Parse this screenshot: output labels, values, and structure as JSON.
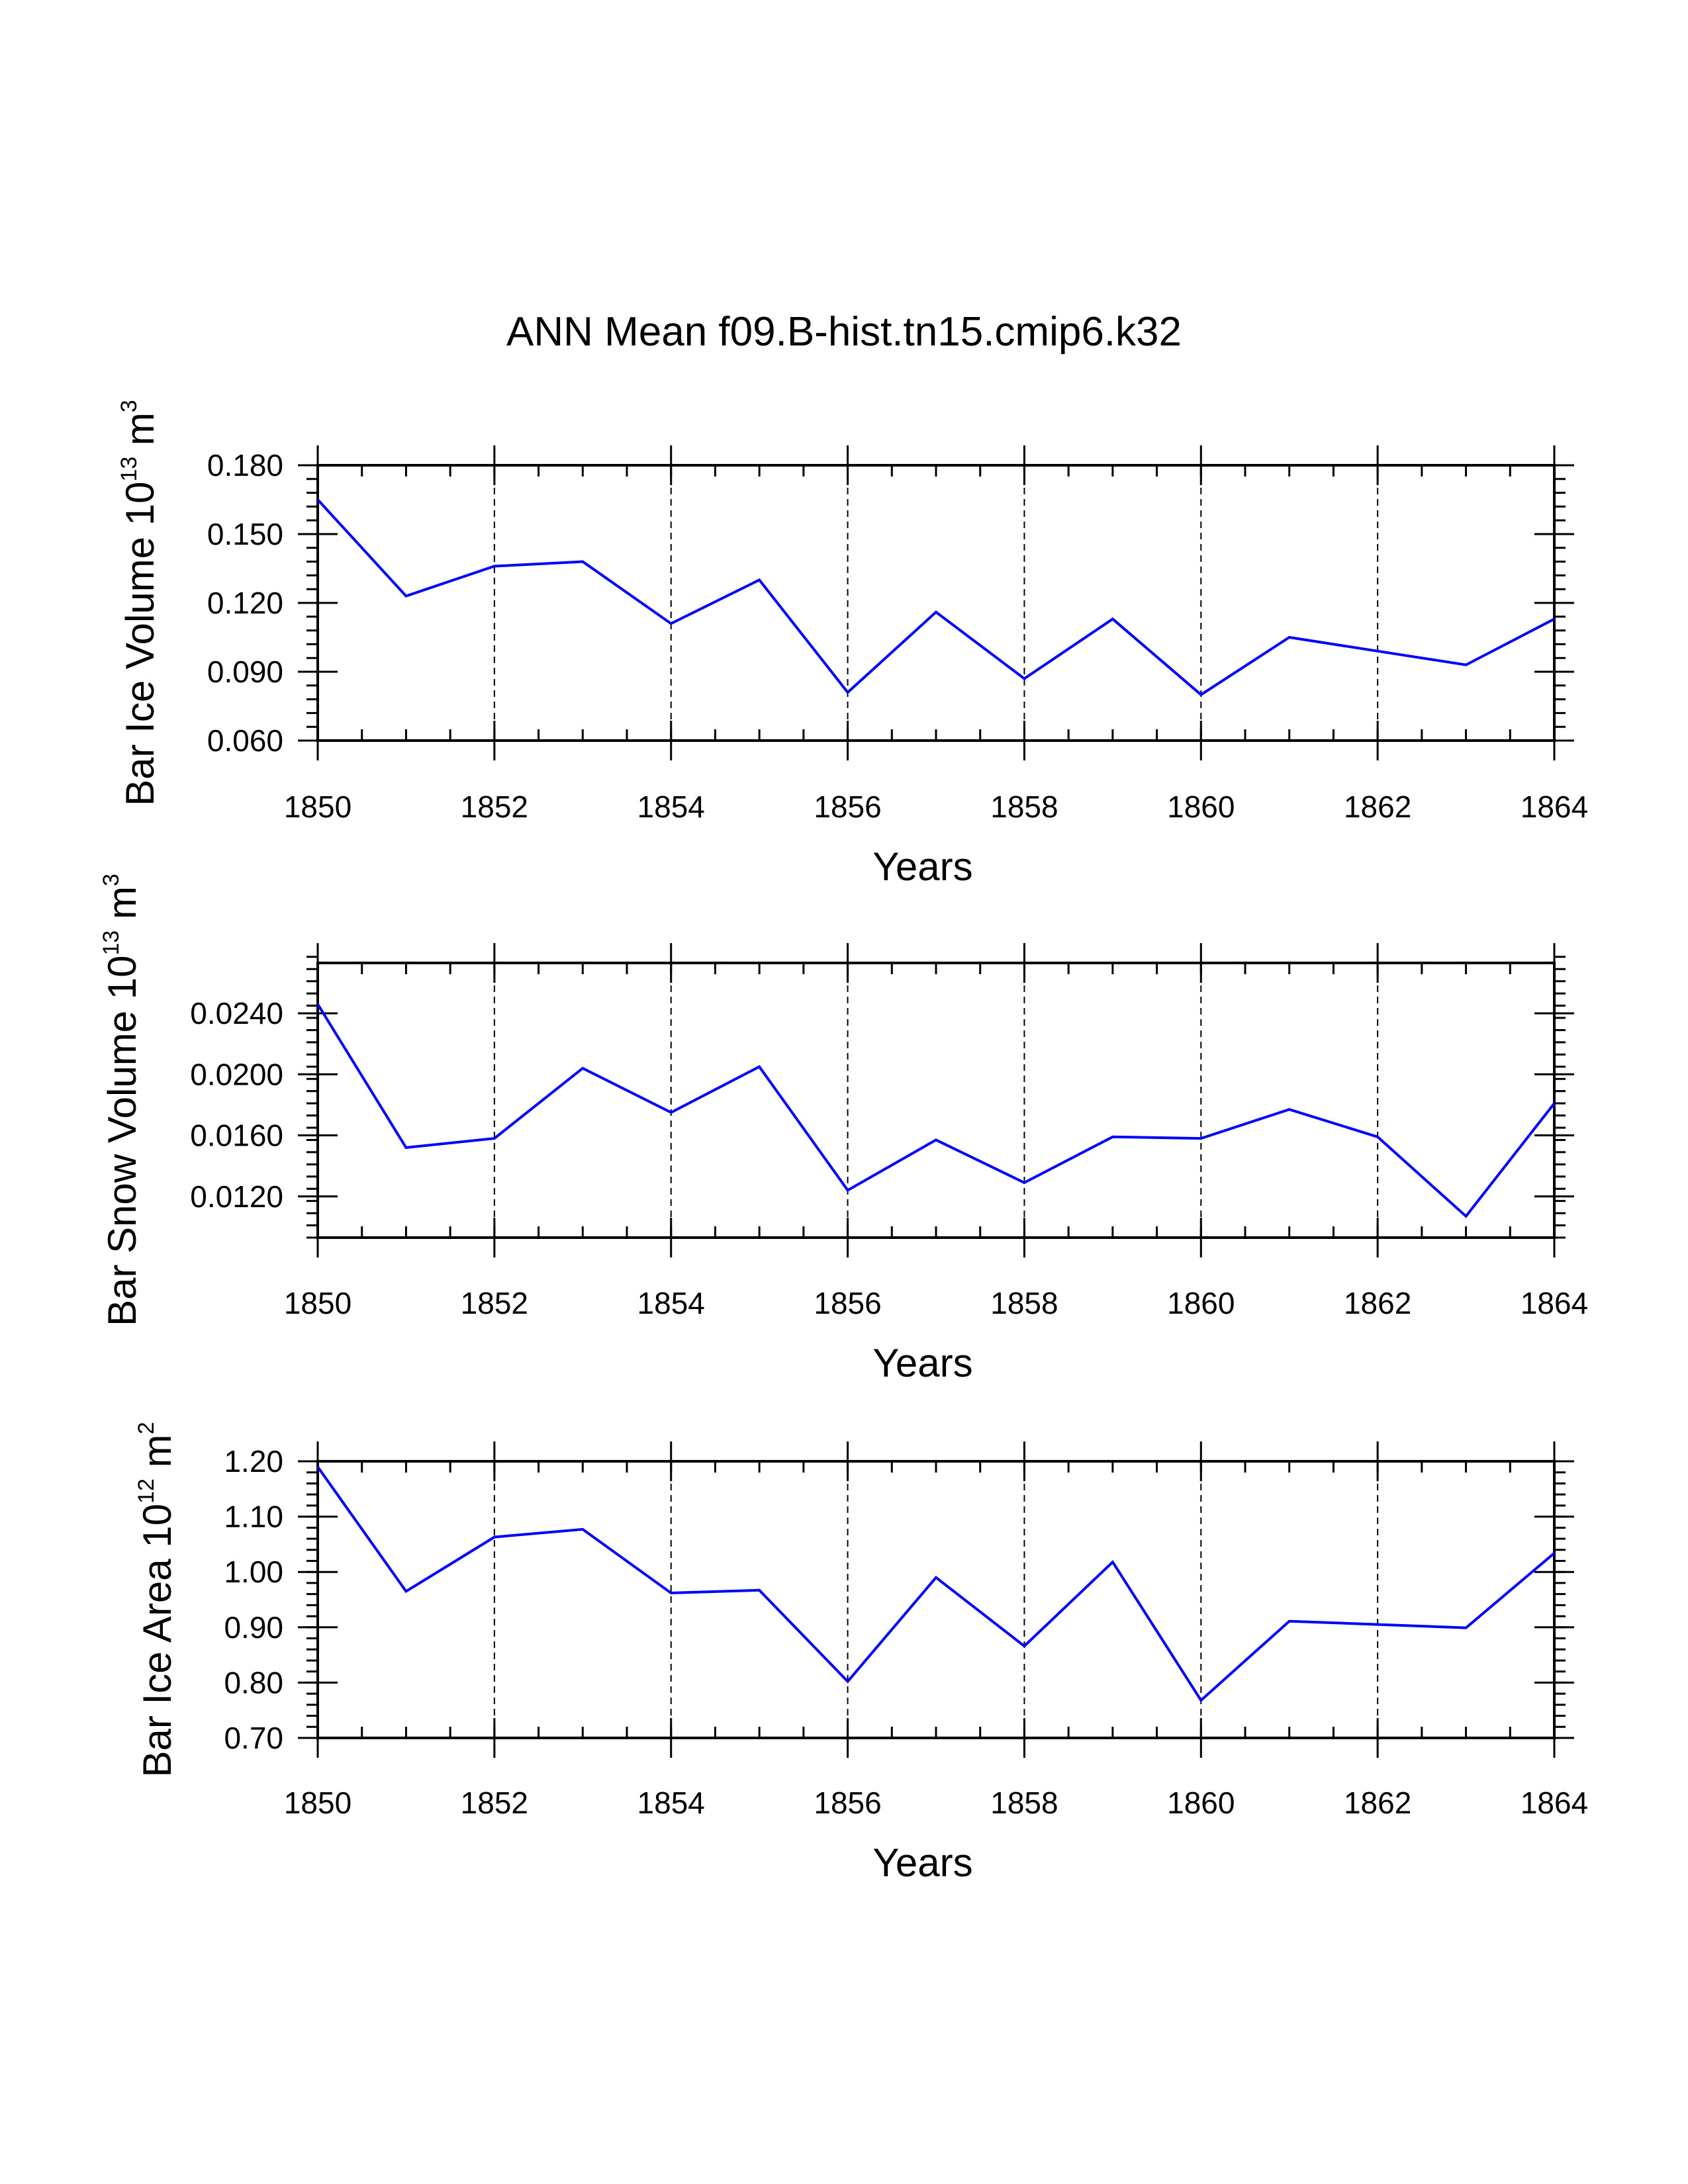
{
  "title": "ANN Mean f09.B-hist.tn15.cmip6.k32",
  "colors": {
    "series": "#0000ff",
    "axis": "#000000",
    "grid": "#000000",
    "background": "#ffffff"
  },
  "chart_data": [
    {
      "type": "line",
      "ylabel_main": "Bar Ice Volume 10",
      "ylabel_exp": "13",
      "ylabel_unit": " m",
      "ylabel_unit_exp": "3",
      "xlabel": "Years",
      "xlim": [
        1850,
        1864
      ],
      "ylim": [
        0.06,
        0.18
      ],
      "x": [
        1850,
        1851,
        1852,
        1853,
        1854,
        1855,
        1856,
        1857,
        1858,
        1859,
        1860,
        1861,
        1862,
        1863,
        1864
      ],
      "values": [
        0.165,
        0.123,
        0.136,
        0.138,
        0.111,
        0.13,
        0.081,
        0.116,
        0.087,
        0.113,
        0.08,
        0.105,
        0.099,
        0.093,
        0.113
      ],
      "xticks": [
        {
          "value": 1850,
          "label": "1850"
        },
        {
          "value": 1852,
          "label": "1852"
        },
        {
          "value": 1854,
          "label": "1854"
        },
        {
          "value": 1856,
          "label": "1856"
        },
        {
          "value": 1858,
          "label": "1858"
        },
        {
          "value": 1860,
          "label": "1860"
        },
        {
          "value": 1862,
          "label": "1862"
        },
        {
          "value": 1864,
          "label": "1864"
        }
      ],
      "yticks": [
        {
          "value": 0.06,
          "label": "0.060"
        },
        {
          "value": 0.09,
          "label": "0.090"
        },
        {
          "value": 0.12,
          "label": "0.120"
        },
        {
          "value": 0.15,
          "label": "0.150"
        },
        {
          "value": 0.18,
          "label": "0.180"
        }
      ],
      "y_minor_step": 0.006,
      "x_minor_step": 0.5,
      "vgrid": [
        1852,
        1854,
        1856,
        1858,
        1860,
        1862
      ]
    },
    {
      "type": "line",
      "ylabel_main": "Bar Snow Volume 10",
      "ylabel_exp": "13",
      "ylabel_unit": " m",
      "ylabel_unit_exp": "3",
      "xlabel": "Years",
      "xlim": [
        1850,
        1864
      ],
      "ylim": [
        0.0093,
        0.0273
      ],
      "x": [
        1850,
        1851,
        1852,
        1853,
        1854,
        1855,
        1856,
        1857,
        1858,
        1859,
        1860,
        1861,
        1862,
        1863,
        1864
      ],
      "values": [
        0.0246,
        0.0152,
        0.0158,
        0.0204,
        0.0175,
        0.0205,
        0.0124,
        0.0157,
        0.0129,
        0.0159,
        0.0158,
        0.0177,
        0.0159,
        0.0107,
        0.0181
      ],
      "xticks": [
        {
          "value": 1850,
          "label": "1850"
        },
        {
          "value": 1852,
          "label": "1852"
        },
        {
          "value": 1854,
          "label": "1854"
        },
        {
          "value": 1856,
          "label": "1856"
        },
        {
          "value": 1858,
          "label": "1858"
        },
        {
          "value": 1860,
          "label": "1860"
        },
        {
          "value": 1862,
          "label": "1862"
        },
        {
          "value": 1864,
          "label": "1864"
        }
      ],
      "yticks": [
        {
          "value": 0.012,
          "label": "0.0120"
        },
        {
          "value": 0.016,
          "label": "0.0160"
        },
        {
          "value": 0.02,
          "label": "0.0200"
        },
        {
          "value": 0.024,
          "label": "0.0240"
        }
      ],
      "y_minor_step": 0.0008,
      "x_minor_step": 0.5,
      "vgrid": [
        1852,
        1854,
        1856,
        1858,
        1860,
        1862
      ]
    },
    {
      "type": "line",
      "ylabel_main": "Bar Ice Area 10",
      "ylabel_exp": "12",
      "ylabel_unit": " m",
      "ylabel_unit_exp": "2",
      "xlabel": "Years",
      "xlim": [
        1850,
        1864
      ],
      "ylim": [
        0.7,
        1.2
      ],
      "x": [
        1850,
        1851,
        1852,
        1853,
        1854,
        1855,
        1856,
        1857,
        1858,
        1859,
        1860,
        1861,
        1862,
        1863,
        1864
      ],
      "values": [
        1.19,
        0.965,
        1.063,
        1.077,
        0.962,
        0.967,
        0.802,
        0.99,
        0.866,
        1.018,
        0.768,
        0.911,
        0.905,
        0.899,
        1.034
      ],
      "xticks": [
        {
          "value": 1850,
          "label": "1850"
        },
        {
          "value": 1852,
          "label": "1852"
        },
        {
          "value": 1854,
          "label": "1854"
        },
        {
          "value": 1856,
          "label": "1856"
        },
        {
          "value": 1858,
          "label": "1858"
        },
        {
          "value": 1860,
          "label": "1860"
        },
        {
          "value": 1862,
          "label": "1862"
        },
        {
          "value": 1864,
          "label": "1864"
        }
      ],
      "yticks": [
        {
          "value": 0.7,
          "label": "0.70"
        },
        {
          "value": 0.8,
          "label": "0.80"
        },
        {
          "value": 0.9,
          "label": "0.90"
        },
        {
          "value": 1.0,
          "label": "1.00"
        },
        {
          "value": 1.1,
          "label": "1.10"
        },
        {
          "value": 1.2,
          "label": "1.20"
        }
      ],
      "y_minor_step": 0.02,
      "x_minor_step": 0.5,
      "vgrid": [
        1852,
        1854,
        1856,
        1858,
        1860,
        1862
      ]
    }
  ]
}
